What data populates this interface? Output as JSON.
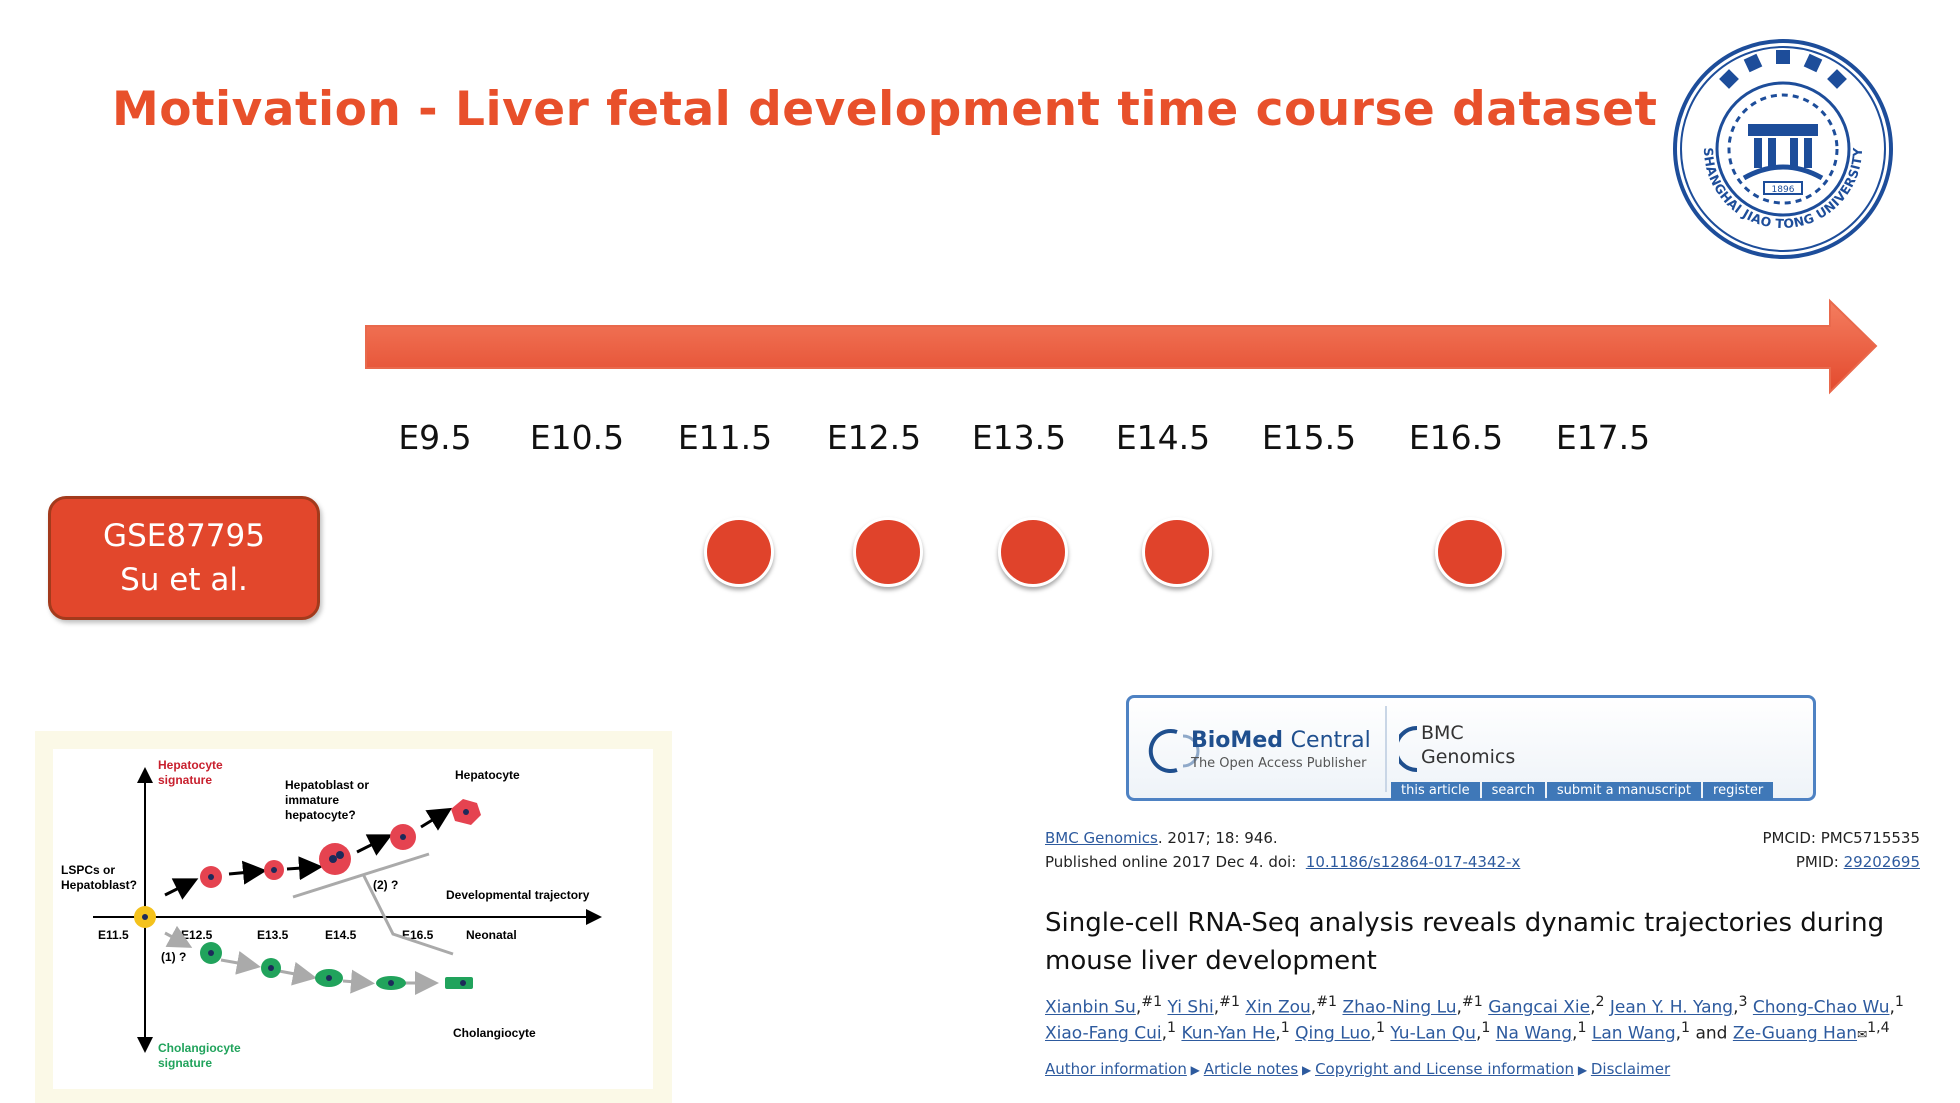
{
  "slide": {
    "title": "Motivation - Liver fetal development time course dataset",
    "accent_color": "#e8502b"
  },
  "logo": {
    "name": "SHANGHAI JIAO TONG UNIVERSITY",
    "year": "1896",
    "icon": "university-seal-icon"
  },
  "timeline": {
    "stages": [
      "E9.5",
      "E10.5",
      "E11.5",
      "E12.5",
      "E13.5",
      "E14.5",
      "E15.5",
      "E16.5",
      "E17.5"
    ],
    "sampled": [
      "E11.5",
      "E12.5",
      "E13.5",
      "E14.5",
      "E16.5"
    ]
  },
  "dataset": {
    "accession": "GSE87795",
    "citation": "Su et al."
  },
  "figure": {
    "hepatocyte_signature": "Hepatocyte\nsignature",
    "cholangiocyte_signature": "Cholangiocyte\nsignature",
    "hepatocyte": "Hepatocyte",
    "hepatoblast_or_immature": "Hepatoblast or\nimmature\nhepatocyte?",
    "lspcs": "LSPCs or\nHepatoblast?",
    "developmental_trajectory": "Developmental trajectory",
    "cholangiocyte": "Cholangiocyte",
    "branch1": "(1) ?",
    "branch2": "(2) ?",
    "axis_ticks": [
      "E11.5",
      "E12.5",
      "E13.5",
      "E14.5",
      "E16.5",
      "Neonatal"
    ]
  },
  "journal": {
    "publisher": "BioMed Central",
    "publisher_bold": "BioMed",
    "publisher_light": "Central",
    "tagline": "The Open Access Publisher",
    "journal_line1": "BMC",
    "journal_line2": "Genomics",
    "nav": [
      "this article",
      "search",
      "submit a manuscript",
      "register"
    ]
  },
  "article": {
    "journal_link": "BMC Genomics",
    "citation_rest": ". 2017; 18: 946.",
    "pmcid": "PMCID: PMC5715535",
    "published_prefix": "Published online 2017 Dec 4. doi:",
    "doi": "10.1186/s12864-017-4342-x",
    "pmid_label": "PMID:",
    "pmid": "29202695",
    "title": "Single-cell RNA-Seq analysis reveals dynamic trajectories during mouse liver development",
    "authors_line1": [
      {
        "name": "Xianbin Su",
        "sup": "#1"
      },
      {
        "name": "Yi Shi",
        "sup": "#1"
      },
      {
        "name": "Xin Zou",
        "sup": "#1"
      },
      {
        "name": "Zhao-Ning Lu",
        "sup": "#1"
      },
      {
        "name": "Gangcai Xie",
        "sup": "2"
      },
      {
        "name": "Jean Y. H. Yang",
        "sup": "3"
      },
      {
        "name": "Chong-Chao Wu",
        "sup": "1"
      }
    ],
    "authors_line2": [
      {
        "name": "Xiao-Fang Cui",
        "sup": "1"
      },
      {
        "name": "Kun-Yan He",
        "sup": "1"
      },
      {
        "name": "Qing Luo",
        "sup": "1"
      },
      {
        "name": "Yu-Lan Qu",
        "sup": "1"
      },
      {
        "name": "Na Wang",
        "sup": "1"
      },
      {
        "name": "Lan Wang",
        "sup": "1"
      }
    ],
    "and_word": "and",
    "last_author": "Ze-Guang Han",
    "last_author_sup": "1,4",
    "links": [
      "Author information",
      "Article notes",
      "Copyright and License information",
      "Disclaimer"
    ]
  }
}
